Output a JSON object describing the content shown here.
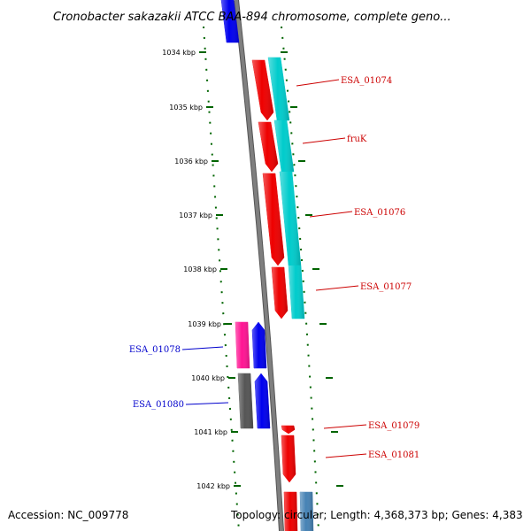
{
  "title": "Cronobacter sakazakii ATCC BAA-894 chromosome, complete geno...",
  "footer": {
    "accession": "Accession: NC_009778",
    "topology": "Topology: circular; Length: 4,368,373 bp; Genes: 4,383"
  },
  "colors": {
    "backbone": "#7f7f7f",
    "tick": "#006400",
    "forward_label": "#cc0000",
    "reverse_label": "#0000cc"
  },
  "ticks": [
    {
      "label": "1034 kbp"
    },
    {
      "label": "1035 kbp"
    },
    {
      "label": "1036 kbp"
    },
    {
      "label": "1037 kbp"
    },
    {
      "label": "1038 kbp"
    },
    {
      "label": "1039 kbp"
    },
    {
      "label": "1040 kbp"
    },
    {
      "label": "1041 kbp"
    },
    {
      "label": "1042 kbp"
    }
  ],
  "gene_labels": [
    {
      "name": "ESA_01074",
      "strand": "forward"
    },
    {
      "name": "fruK",
      "strand": "forward"
    },
    {
      "name": "ESA_01076",
      "strand": "forward"
    },
    {
      "name": "ESA_01077",
      "strand": "forward"
    },
    {
      "name": "ESA_01078",
      "strand": "reverse"
    },
    {
      "name": "ESA_01080",
      "strand": "reverse"
    },
    {
      "name": "ESA_01079",
      "strand": "forward"
    },
    {
      "name": "ESA_01081",
      "strand": "forward"
    }
  ],
  "features": [
    {
      "id": "f-top-blue",
      "color": "#0000ee",
      "strand": "forward"
    },
    {
      "id": "f-esa01074-gene",
      "color": "#ee0000",
      "strand": "forward"
    },
    {
      "id": "f-esa01074-cds",
      "color": "#00cccc",
      "strand": "forward"
    },
    {
      "id": "f-fruk-gene",
      "color": "#ee0000",
      "strand": "forward"
    },
    {
      "id": "f-fruk-cds",
      "color": "#00cccc",
      "strand": "forward"
    },
    {
      "id": "f-esa01076-gene",
      "color": "#ee0000",
      "strand": "forward"
    },
    {
      "id": "f-esa01076-cds",
      "color": "#00cccc",
      "strand": "forward"
    },
    {
      "id": "f-esa01077-gene",
      "color": "#ee0000",
      "strand": "forward"
    },
    {
      "id": "f-esa01077-cds",
      "color": "#00cccc",
      "strand": "forward"
    },
    {
      "id": "f-esa01078-cds",
      "color": "#ff1493",
      "strand": "reverse"
    },
    {
      "id": "f-esa01078-gene",
      "color": "#0000ee",
      "strand": "reverse"
    },
    {
      "id": "f-esa01080-cds",
      "color": "#555555",
      "strand": "reverse"
    },
    {
      "id": "f-esa01080-gene",
      "color": "#0000ee",
      "strand": "reverse"
    },
    {
      "id": "f-esa01079-gene",
      "color": "#ee0000",
      "strand": "forward"
    },
    {
      "id": "f-esa01081-gene",
      "color": "#ee0000",
      "strand": "forward"
    },
    {
      "id": "f-bottom-red",
      "color": "#ee0000",
      "strand": "forward"
    },
    {
      "id": "f-bottom-steel",
      "color": "#4682b4",
      "strand": "forward"
    }
  ]
}
